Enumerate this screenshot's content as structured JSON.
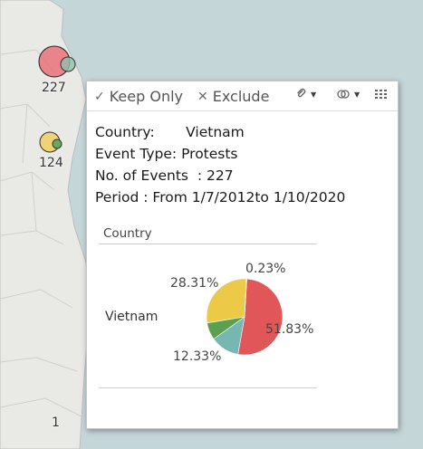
{
  "map": {
    "bubbles": [
      {
        "label": "227",
        "color": "#e8636b"
      },
      {
        "label": "124",
        "color": "#f0d060"
      },
      {
        "label": "1"
      }
    ]
  },
  "tooltip": {
    "toolbar": {
      "keep_only": "Keep Only",
      "exclude": "Exclude"
    },
    "info": {
      "country": "Country:       Vietnam",
      "event_type": "Event Type: Protests",
      "events": "No. of Events  : 227",
      "period": "Period : From 1/7/2012to 1/10/2020"
    },
    "table": {
      "column_header": "Country",
      "row_label": "Vietnam"
    }
  },
  "chart_data": {
    "type": "pie",
    "labels_shown": [
      "51.83%",
      "28.31%",
      "12.33%",
      "0.23%"
    ],
    "slices": [
      {
        "value": 51.83,
        "label": "51.83%",
        "color": "#e15759"
      },
      {
        "value": 12.33,
        "label": "12.33%",
        "color": "#76b7b2"
      },
      {
        "value": 7.3,
        "label": "",
        "color": "#59a14f"
      },
      {
        "value": 28.31,
        "label": "28.31%",
        "color": "#edc948"
      },
      {
        "value": 0.23,
        "label": "0.23%",
        "color": "#4e79a7"
      }
    ]
  }
}
